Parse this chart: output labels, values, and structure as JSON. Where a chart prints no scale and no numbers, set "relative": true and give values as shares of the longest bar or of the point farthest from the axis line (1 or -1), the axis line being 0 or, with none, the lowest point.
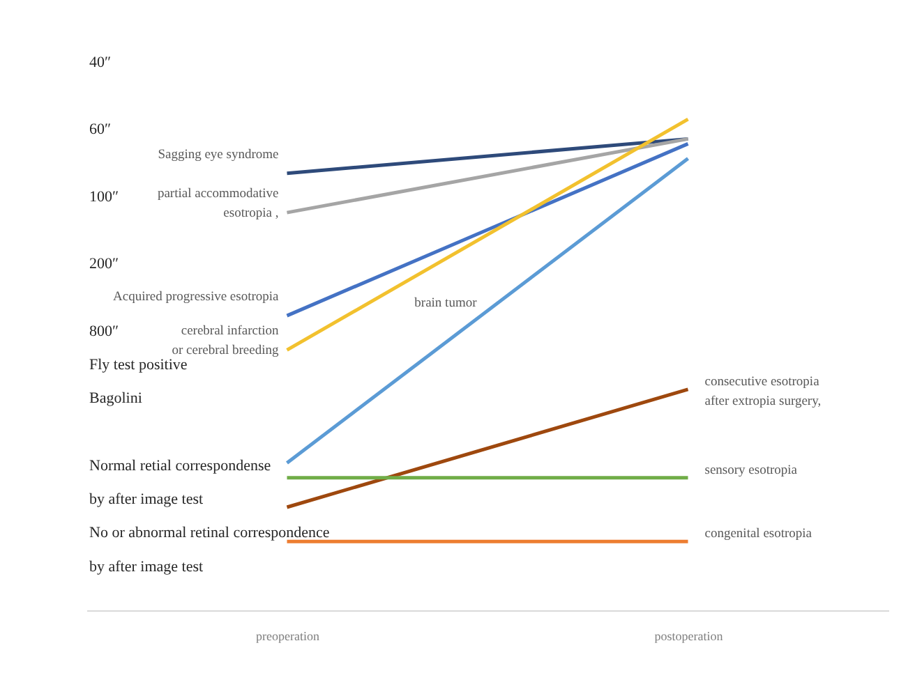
{
  "chart_data": {
    "type": "line",
    "categories": [
      "preoperation",
      "postoperation"
    ],
    "relative": true,
    "series": [
      {
        "name": "Sagging eye syndrome",
        "color": "#2e4a7a",
        "values": [
          0.89,
          0.96
        ]
      },
      {
        "name": "partial accommodative esotropia ,",
        "color": "#a5a5a5",
        "values": [
          0.81,
          0.96
        ]
      },
      {
        "name": "Acquired  progressive esotropia",
        "color": "#4472c4",
        "values": [
          0.6,
          0.95
        ]
      },
      {
        "name": "cerebral infarction or cerebral breeding",
        "color": "#f2c12e",
        "values": [
          0.53,
          1
        ]
      },
      {
        "name": "brain tumor",
        "color": "#5b9bd5",
        "values": [
          0.3,
          0.92
        ]
      },
      {
        "name": "consecutive esotropia after extropia surgery,",
        "color": "#9e480e",
        "values": [
          0.21,
          0.45
        ]
      },
      {
        "name": "sensory esotropia",
        "color": "#70ad47",
        "values": [
          0.27,
          0.27
        ]
      },
      {
        "name": "congenital esotropia",
        "color": "#ed7d31",
        "values": [
          0.14,
          0.14
        ]
      }
    ],
    "annotations": [
      "40″",
      "60″",
      "100″",
      "200″",
      "800″",
      "Fly test positive",
      "Bagolini",
      "Normal retial correspondense",
      "by after image test",
      "No or abnormal retinal correspondence",
      "by after image test"
    ],
    "legend": false,
    "marker": "none",
    "line_style": "solid"
  }
}
